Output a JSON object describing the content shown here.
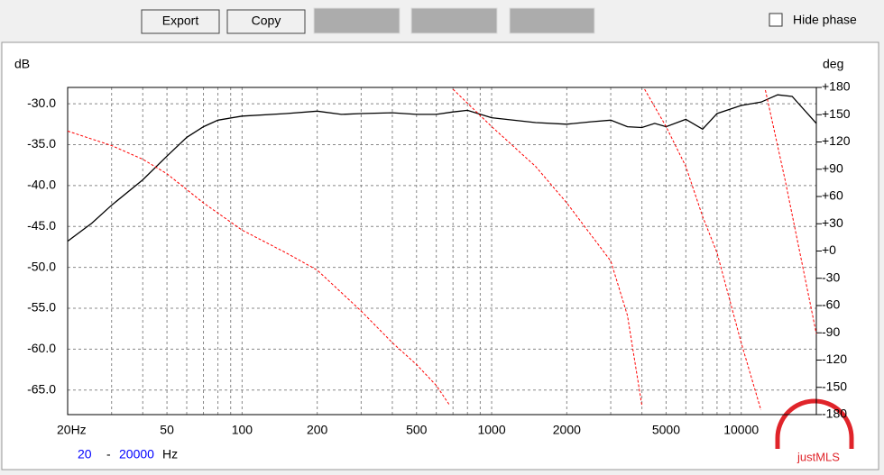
{
  "toolbar": {
    "buttons": [
      "Export",
      "Copy"
    ],
    "hide_phase": "Hide phase"
  },
  "chart_data": {
    "type": "line",
    "ylabel": "dB",
    "y2label": "deg",
    "xscale": "log",
    "grid": true,
    "xlim": [
      20,
      20000
    ],
    "ylim": [
      -68,
      -28
    ],
    "y2lim": [
      -180,
      180
    ],
    "xticks": [
      {
        "value": 20,
        "label": "20Hz"
      },
      50,
      100,
      200,
      500,
      1000,
      2000,
      5000,
      10000
    ],
    "x_minor_grid": [
      30,
      40,
      60,
      70,
      80,
      90,
      300,
      400,
      600,
      700,
      800,
      900,
      3000,
      4000,
      6000,
      7000,
      8000,
      9000
    ],
    "yticks": [
      {
        "value": -30,
        "label": "-30.0"
      },
      {
        "value": -35,
        "label": "-35.0"
      },
      {
        "value": -40,
        "label": "-40.0"
      },
      {
        "value": -45,
        "label": "-45.0"
      },
      {
        "value": -50,
        "label": "-50.0"
      },
      {
        "value": -55,
        "label": "-55.0"
      },
      {
        "value": -60,
        "label": "-60.0"
      },
      {
        "value": -65,
        "label": "-65.0"
      }
    ],
    "y2ticks": [
      {
        "value": 180,
        "label": "+180"
      },
      {
        "value": 150,
        "label": "+150"
      },
      {
        "value": 120,
        "label": "+120"
      },
      {
        "value": 90,
        "label": "+90"
      },
      {
        "value": 60,
        "label": "+60"
      },
      {
        "value": 30,
        "label": "+30"
      },
      {
        "value": 0,
        "label": "+0"
      },
      -30,
      -60,
      -90,
      -120,
      -150,
      -180
    ],
    "series": [
      {
        "color": "#000000",
        "x": [
          20,
          25,
          30,
          40,
          50,
          60,
          70,
          80,
          100,
          150,
          200,
          250,
          300,
          400,
          500,
          600,
          700,
          800,
          1000,
          1500,
          2000,
          2500,
          3000,
          3500,
          4000,
          4500,
          5000,
          6000,
          7000,
          8000,
          10000,
          12000,
          14000,
          16000,
          20000
        ],
        "values": [
          -46.8,
          -44.6,
          -42.4,
          -39.3,
          -36.4,
          -34.1,
          -32.8,
          -32.0,
          -31.5,
          -31.2,
          -30.9,
          -31.3,
          -31.2,
          -31.1,
          -31.3,
          -31.3,
          -31.0,
          -30.8,
          -31.7,
          -32.3,
          -32.5,
          -32.2,
          -32.0,
          -32.8,
          -32.9,
          -32.4,
          -32.8,
          -31.9,
          -33.1,
          -31.2,
          -30.2,
          -29.8,
          -28.9,
          -29.1,
          -32.4
        ]
      },
      {
        "color": "#ff0000",
        "axis": "y2",
        "x": [
          20,
          30,
          40,
          50,
          70,
          100,
          150,
          200,
          300,
          400,
          500,
          600,
          680,
          690,
          700,
          1000,
          1500,
          2000,
          3000,
          3500,
          4000,
          4050,
          4100,
          5000,
          6000,
          7000,
          8000,
          10000,
          12000,
          12300,
          12500,
          15000,
          20000
        ],
        "values": [
          132,
          116,
          101,
          85,
          53,
          23,
          -2,
          -21,
          -66,
          -101,
          -125,
          -148,
          -170,
          null,
          178,
          137,
          93,
          53,
          -11,
          -71,
          -170,
          null,
          178,
          137,
          93,
          38,
          -2,
          -101,
          -175,
          null,
          177,
          78,
          -91
        ]
      }
    ]
  },
  "range": {
    "from": 20,
    "sep": "-",
    "to": 20000,
    "unit": "Hz"
  },
  "watermark": "justMLS"
}
